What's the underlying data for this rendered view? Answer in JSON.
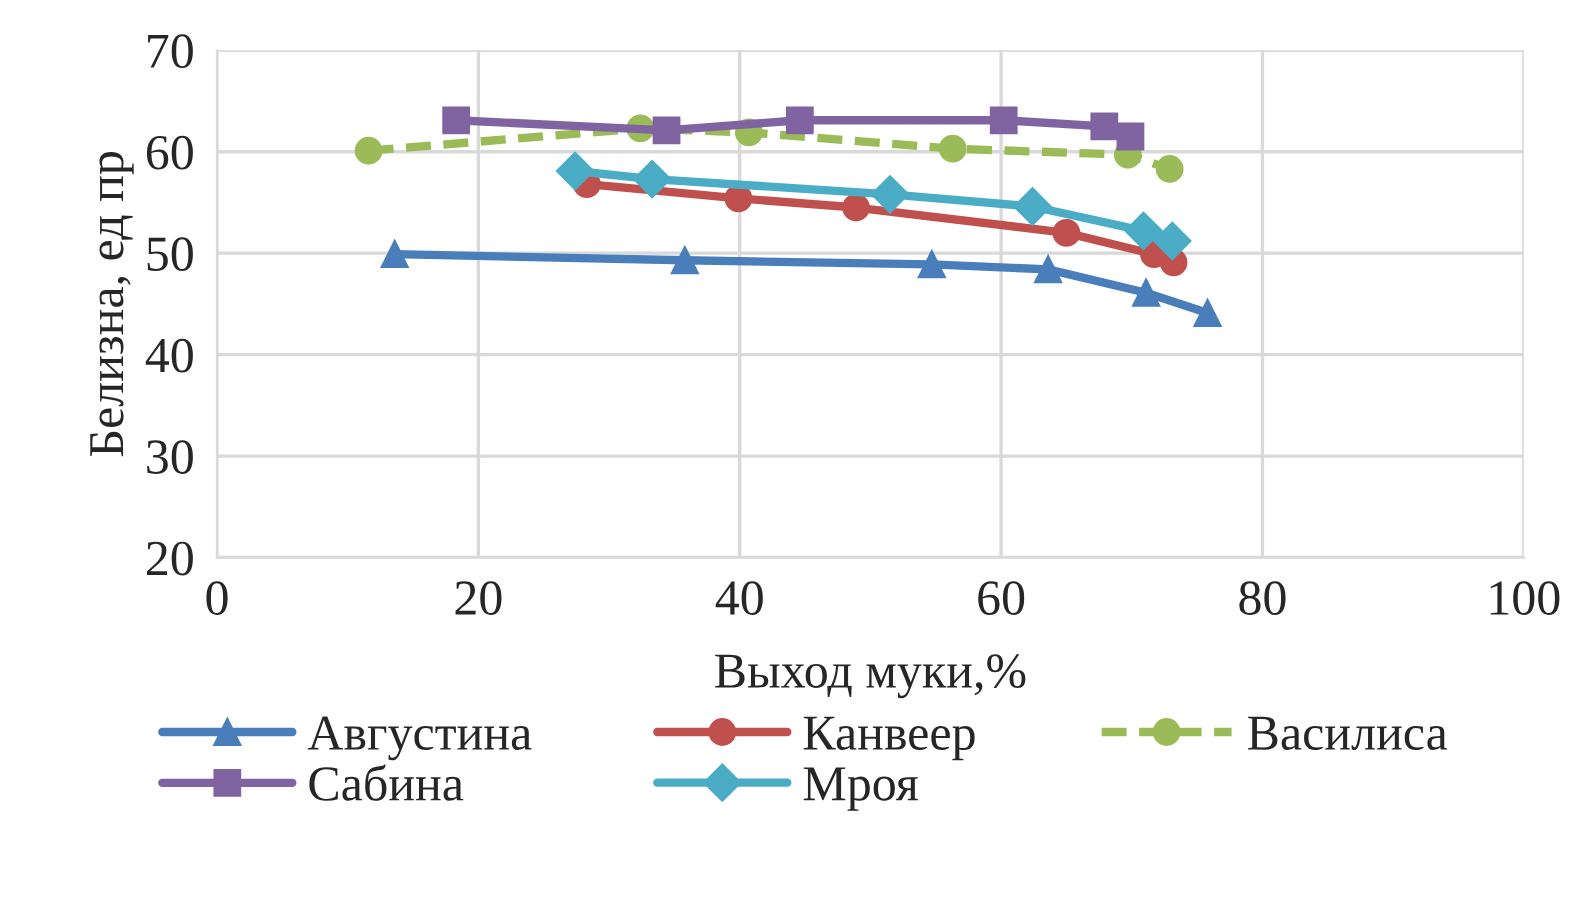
{
  "chart_data": {
    "type": "line",
    "xlabel": "Выход муки,%",
    "ylabel": "Белизна, ед пр",
    "xlim": [
      0,
      100
    ],
    "xticks": [
      0,
      20,
      40,
      60,
      80,
      100
    ],
    "ylim": [
      20,
      70
    ],
    "yticks": [
      20,
      30,
      40,
      50,
      60,
      70
    ],
    "grid": true,
    "legend": "bottom",
    "series": [
      {
        "name": "Августина",
        "color": "#4a7ebb",
        "marker": "triangle",
        "line_style": "solid",
        "x": [
          13.6,
          35.8,
          54.7,
          63.6,
          71.1,
          75.8
        ],
        "values": [
          49.9,
          49.3,
          48.9,
          48.4,
          46.1,
          44.1
        ]
      },
      {
        "name": "Канвеер",
        "color": "#c0504d",
        "marker": "circle",
        "line_style": "solid",
        "x": [
          28.3,
          39.9,
          48.9,
          65.0,
          71.7,
          73.2
        ],
        "values": [
          56.8,
          55.4,
          54.5,
          52.0,
          49.9,
          49.1
        ]
      },
      {
        "name": "Василиса",
        "color": "#9bbb59",
        "marker": "circle",
        "line_style": "dashed",
        "x": [
          11.6,
          32.4,
          40.7,
          56.3,
          69.7,
          72.9
        ],
        "values": [
          60.1,
          62.3,
          61.9,
          60.3,
          59.7,
          58.3
        ]
      },
      {
        "name": "Сабина",
        "color": "#8064a2",
        "marker": "square",
        "line_style": "solid",
        "x": [
          18.3,
          34.4,
          44.6,
          60.2,
          67.9,
          69.9
        ],
        "values": [
          63.1,
          62.1,
          63.1,
          63.1,
          62.5,
          61.5
        ]
      },
      {
        "name": "Мроя",
        "color": "#4bacc6",
        "marker": "diamond",
        "line_style": "solid",
        "x": [
          27.4,
          33.3,
          51.5,
          62.4,
          70.9,
          73.1
        ],
        "values": [
          58.1,
          57.3,
          55.8,
          54.6,
          52.2,
          51.2
        ]
      }
    ]
  }
}
